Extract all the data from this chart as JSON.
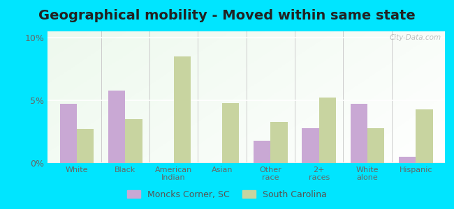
{
  "title": "Geographical mobility - Moved within same state",
  "categories": [
    "White",
    "Black",
    "American\nIndian",
    "Asian",
    "Other\nrace",
    "2+\nraces",
    "White\nalone",
    "Hispanic"
  ],
  "moncks_corner": [
    4.7,
    5.8,
    0.0,
    0.0,
    1.8,
    2.8,
    4.7,
    0.5
  ],
  "south_carolina": [
    2.7,
    3.5,
    8.5,
    4.8,
    3.3,
    5.2,
    2.8,
    4.3
  ],
  "bar_color_moncks": "#c9a8d4",
  "bar_color_sc": "#c8d4a0",
  "outer_bg": "#00e5ff",
  "ylim": [
    0,
    10.5
  ],
  "yticks": [
    0,
    5,
    10
  ],
  "ytick_labels": [
    "0%",
    "5%",
    "10%"
  ],
  "title_fontsize": 14,
  "legend_label_moncks": "Moncks Corner, SC",
  "legend_label_sc": "South Carolina",
  "watermark": "City-Data.com"
}
